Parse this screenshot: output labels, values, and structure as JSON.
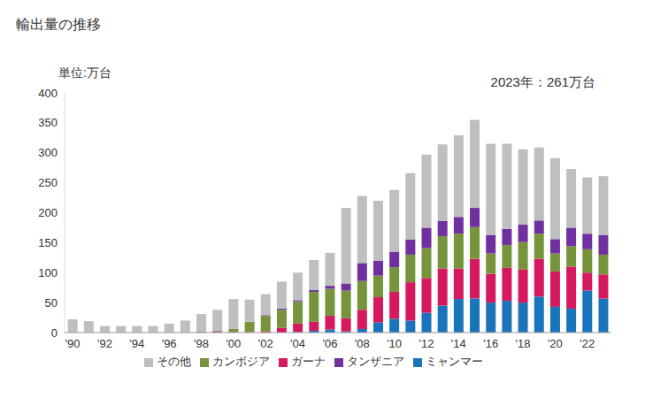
{
  "chart_data": {
    "type": "bar",
    "title": "輸出量の推移",
    "y_label": "単位:万台",
    "annotation": "2023年：261万台",
    "stacked": true,
    "grid": false,
    "legend": "bottom",
    "categories": [
      "'90",
      null,
      "'92",
      null,
      "'94",
      null,
      "'96",
      null,
      "'98",
      null,
      "'00",
      null,
      "'02",
      null,
      "'04",
      null,
      "'06",
      null,
      "'08",
      null,
      "'10",
      null,
      "'12",
      null,
      "'14",
      null,
      "'16",
      null,
      "'18",
      null,
      "'20",
      null,
      "'22",
      null
    ],
    "ylim": [
      0,
      400
    ],
    "yticks": [
      0,
      50,
      100,
      150,
      200,
      250,
      300,
      350,
      400
    ],
    "series": [
      {
        "name": "ミャンマー",
        "color": "#1a74bb",
        "values": [
          0,
          0,
          0,
          0,
          0,
          0,
          0,
          0,
          0,
          0,
          0,
          0,
          0,
          0,
          1,
          3,
          5,
          2,
          6,
          17,
          23,
          20,
          33,
          45,
          56,
          57,
          50,
          53,
          50,
          60,
          43,
          40,
          70,
          57
        ]
      },
      {
        "name": "ガーナ",
        "color": "#d6185e",
        "values": [
          0,
          0,
          0,
          0,
          0,
          0,
          0,
          0,
          0,
          2,
          1,
          1,
          2,
          8,
          14,
          15,
          23,
          22,
          32,
          42,
          45,
          64,
          58,
          62,
          51,
          66,
          48,
          55,
          55,
          63,
          59,
          70,
          30,
          40
        ]
      },
      {
        "name": "カンボジア",
        "color": "#77933c",
        "values": [
          0,
          0,
          0,
          0,
          0,
          0,
          0,
          0,
          2,
          1,
          5,
          17,
          26,
          30,
          37,
          50,
          45,
          46,
          48,
          36,
          41,
          46,
          50,
          54,
          58,
          53,
          34,
          38,
          46,
          42,
          30,
          34,
          39,
          33
        ]
      },
      {
        "name": "タンザニア",
        "color": "#7030a0",
        "values": [
          0,
          0,
          0,
          0,
          0,
          0,
          0,
          0,
          0,
          0,
          0,
          0,
          1,
          2,
          2,
          3,
          5,
          12,
          30,
          25,
          26,
          25,
          34,
          25,
          28,
          32,
          31,
          27,
          29,
          22,
          24,
          31,
          26,
          33
        ]
      },
      {
        "name": "その他",
        "color": "#bfbfbf",
        "values": [
          22,
          19,
          11,
          11,
          11,
          11,
          15,
          20,
          29,
          35,
          50,
          37,
          35,
          45,
          46,
          50,
          55,
          126,
          112,
          100,
          103,
          111,
          122,
          128,
          136,
          147,
          152,
          142,
          126,
          122,
          135,
          98,
          94,
          98
        ]
      }
    ]
  }
}
